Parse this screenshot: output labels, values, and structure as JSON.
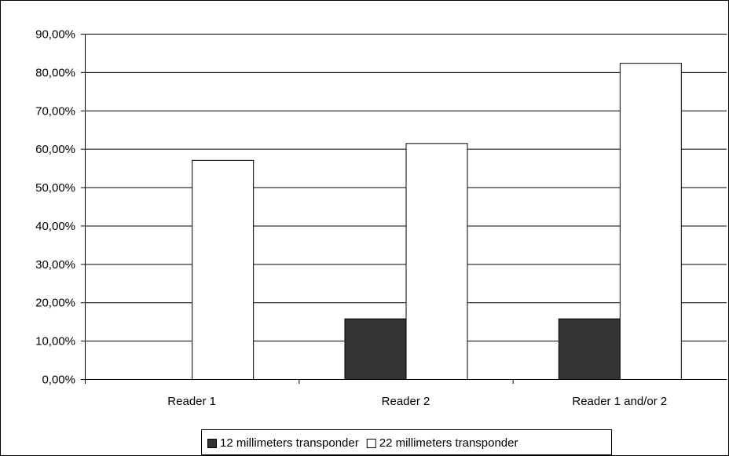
{
  "chart_data": {
    "type": "bar",
    "categories": [
      "Reader 1",
      "Reader 2",
      "Reader 1 and/or 2"
    ],
    "series": [
      {
        "name": "12 millimeters transponder",
        "values": [
          0.0,
          15.8,
          15.8
        ],
        "color": "#333333"
      },
      {
        "name": "22 millimeters transponder",
        "values": [
          57.1,
          61.5,
          82.4
        ],
        "color": "#ffffff"
      }
    ],
    "ylim": [
      0,
      90
    ],
    "y_ticks": [
      0,
      10,
      20,
      30,
      40,
      50,
      60,
      70,
      80,
      90
    ],
    "y_tick_labels": [
      "0,00%",
      "10,00%",
      "20,00%",
      "30,00%",
      "40,00%",
      "50,00%",
      "60,00%",
      "70,00%",
      "80,00%",
      "90,00%"
    ],
    "title": "",
    "xlabel": "",
    "ylabel": "",
    "grid": true,
    "legend_position": "bottom"
  }
}
